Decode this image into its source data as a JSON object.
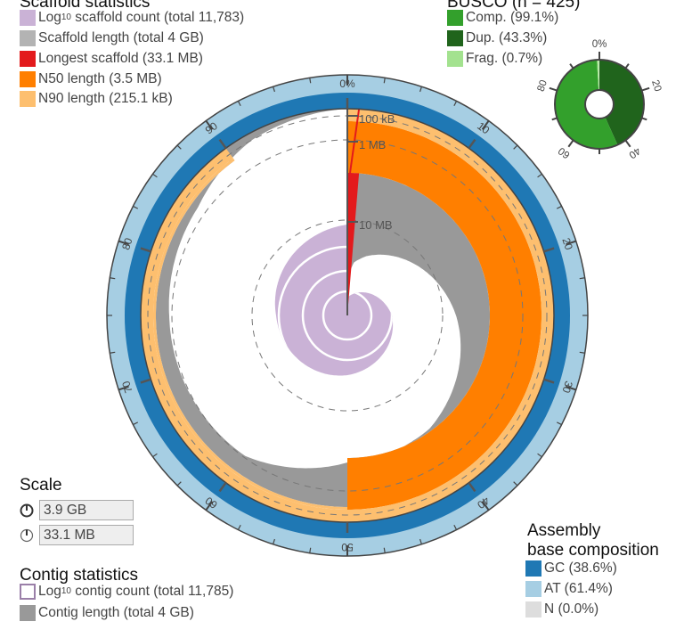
{
  "scaffold_legend": {
    "title": "Scaffold statistics",
    "items": [
      {
        "prefix": "Log",
        "sub": "10",
        "label": " scaffold count (total 11,783)",
        "color": "#cab2d6"
      },
      {
        "label": "Scaffold length (total 4 GB)",
        "color": "#b3b3b3"
      },
      {
        "label": "Longest scaffold (33.1 MB)",
        "color": "#e31a1c"
      },
      {
        "label": "N50 length (3.5 MB)",
        "color": "#ff7f00"
      },
      {
        "label": "N90 length (215.1 kB)",
        "color": "#fdbf6f"
      }
    ]
  },
  "busco_legend": {
    "title": "BUSCO (n = 425)",
    "items": [
      {
        "label": "Comp. (99.1%)",
        "color": "#33a02c"
      },
      {
        "label": "Dup. (43.3%)",
        "color": "#20641c"
      },
      {
        "label": "Frag. (0.7%)",
        "color": "#a3e28f"
      }
    ]
  },
  "scale": {
    "title": "Scale",
    "total_value": "3.9 GB",
    "longest_value": "33.1 MB"
  },
  "contig_legend": {
    "title": "Contig statistics",
    "items": [
      {
        "prefix": "Log",
        "sub": "10",
        "label": " contig count (total 11,785)",
        "color": "#cab2d6",
        "outline": true
      },
      {
        "label": "Contig length (total 4 GB)",
        "color": "#999999"
      }
    ]
  },
  "composition_legend": {
    "title_line1": "Assembly",
    "title_line2": "base composition",
    "items": [
      {
        "label": "GC (38.6%)",
        "color": "#1f78b4"
      },
      {
        "label": "AT (61.4%)",
        "color": "#a6cee3"
      },
      {
        "label": "N (0.0%)",
        "color": "#dddddd"
      }
    ]
  },
  "chart_data": [
    {
      "type": "snail",
      "scaffold_count_total": 11783,
      "total_length": "4 GB",
      "longest_scaffold": "33.1 MB",
      "n50_length": "3.5 MB",
      "n90_length": "215.1 kB",
      "gc_percent": 38.6,
      "at_percent": 61.4,
      "n_percent": 0.0,
      "percent_ticks": [
        "0%",
        "10",
        "20",
        "30",
        "40",
        "50",
        "60",
        "70",
        "80",
        "90"
      ],
      "radial_ticks": [
        "100 kB",
        "1 MB",
        "10 MB"
      ],
      "colors": {
        "scaffold_length": "#999999",
        "longest": "#e31a1c",
        "n50": "#ff7f00",
        "n90": "#fdbf6f",
        "count": "#cab2d6",
        "gc": "#1f78b4",
        "at": "#a6cee3"
      }
    },
    {
      "type": "pie",
      "title": "BUSCO (n = 425)",
      "slices": [
        {
          "name": "Dup.",
          "value": 43.3,
          "color": "#20641c"
        },
        {
          "name": "Comp. single",
          "value": 55.8,
          "color": "#33a02c"
        },
        {
          "name": "Frag.",
          "value": 0.7,
          "color": "#a3e28f"
        }
      ],
      "complete_percent": 99.1,
      "ticks": [
        "0%",
        "20",
        "40",
        "60",
        "80"
      ]
    }
  ]
}
